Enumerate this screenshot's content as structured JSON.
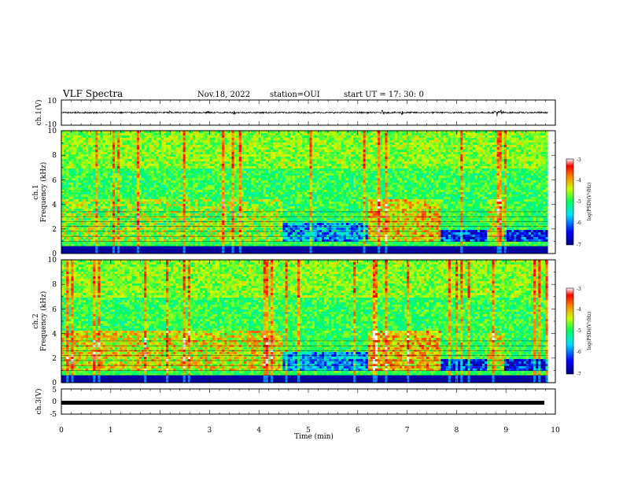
{
  "header": {
    "title": "VLF Spectra",
    "date": "Nov.18, 2022",
    "station": "station=OUI",
    "start_ut": "start  UT =   17: 30: 0"
  },
  "chart_data": [
    {
      "type": "line",
      "panel": "ch1-waveform",
      "ylabel": "ch.1(V)",
      "ylim": [
        -10,
        10
      ],
      "yticks": [
        "10",
        "-10"
      ],
      "x_range_min": [
        0,
        9.85
      ],
      "baseline": 0,
      "noise_amplitude": 0.6,
      "bursts": [
        {
          "t": 2.2,
          "amp": 1.8
        },
        {
          "t": 2.95,
          "amp": 2.0
        },
        {
          "t": 3.5,
          "amp": 1.8
        },
        {
          "t": 6.5,
          "amp": 2.2
        },
        {
          "t": 6.9,
          "amp": 1.9
        },
        {
          "t": 8.8,
          "amp": 4.6
        },
        {
          "t": 8.9,
          "amp": 3.2
        }
      ]
    },
    {
      "type": "heatmap",
      "panel": "ch1-spectrogram",
      "ylabel_top": "ch.1",
      "ylabel": "Frequency  (kHz)",
      "ylim": [
        0,
        10
      ],
      "yticks": [
        "0",
        "2",
        "4",
        "6",
        "8",
        "10"
      ],
      "x_range_min": [
        0,
        9.85
      ],
      "colorbar": {
        "label": "log(PSD)(V²/Hz)",
        "range": [
          -7,
          -3
        ],
        "ticks": [
          "-3",
          "-4",
          "-5",
          "-6",
          "-7"
        ]
      },
      "segments": [
        {
          "from_min": 0.0,
          "to_min": 4.5,
          "band_top_khz": 4.5,
          "level": -4.6
        },
        {
          "from_min": 4.5,
          "to_min": 6.2,
          "band_top_khz": 2.5,
          "level": -5.8
        },
        {
          "from_min": 6.2,
          "to_min": 7.7,
          "band_top_khz": 4.4,
          "level": -4.2
        },
        {
          "from_min": 7.7,
          "to_min": 8.6,
          "band_top_khz": 2.0,
          "level": -6.2
        },
        {
          "from_min": 8.6,
          "to_min": 8.95,
          "band_top_khz": 4.5,
          "level": -4.5
        },
        {
          "from_min": 8.95,
          "to_min": 9.85,
          "band_top_khz": 2.0,
          "level": -6.3
        }
      ]
    },
    {
      "type": "heatmap",
      "panel": "ch2-spectrogram",
      "ylabel_top": "ch.2",
      "ylabel": "Frequency  (kHz)",
      "ylim": [
        0,
        10
      ],
      "yticks": [
        "0",
        "2",
        "4",
        "6",
        "8",
        "10"
      ],
      "x_range_min": [
        0,
        9.85
      ],
      "colorbar": {
        "label": "log(PSD)(V²/Hz)",
        "range": [
          -7,
          -3
        ],
        "ticks": [
          "-3",
          "-4",
          "-5",
          "-6",
          "-7"
        ]
      },
      "segments": [
        {
          "from_min": 0.0,
          "to_min": 4.5,
          "band_top_khz": 4.3,
          "level": -4.3
        },
        {
          "from_min": 4.5,
          "to_min": 6.2,
          "band_top_khz": 2.5,
          "level": -5.8
        },
        {
          "from_min": 6.2,
          "to_min": 7.7,
          "band_top_khz": 4.3,
          "level": -4.1
        },
        {
          "from_min": 7.7,
          "to_min": 8.6,
          "band_top_khz": 2.0,
          "level": -6.3
        },
        {
          "from_min": 8.6,
          "to_min": 8.95,
          "band_top_khz": 4.3,
          "level": -4.4
        },
        {
          "from_min": 8.95,
          "to_min": 9.85,
          "band_top_khz": 2.0,
          "level": -6.4
        }
      ]
    },
    {
      "type": "line",
      "panel": "ch3-waveform",
      "ylabel": "ch.3(V)",
      "ylim": [
        -5,
        5
      ],
      "yticks": [
        "5",
        "0",
        "-5"
      ],
      "x_range_min": [
        0,
        9.85
      ],
      "baseline": 0
    }
  ],
  "xaxis": {
    "label": "Time  (min)",
    "range": [
      0,
      10
    ],
    "ticks": [
      "0",
      "1",
      "2",
      "3",
      "4",
      "5",
      "6",
      "7",
      "8",
      "9",
      "10"
    ]
  }
}
